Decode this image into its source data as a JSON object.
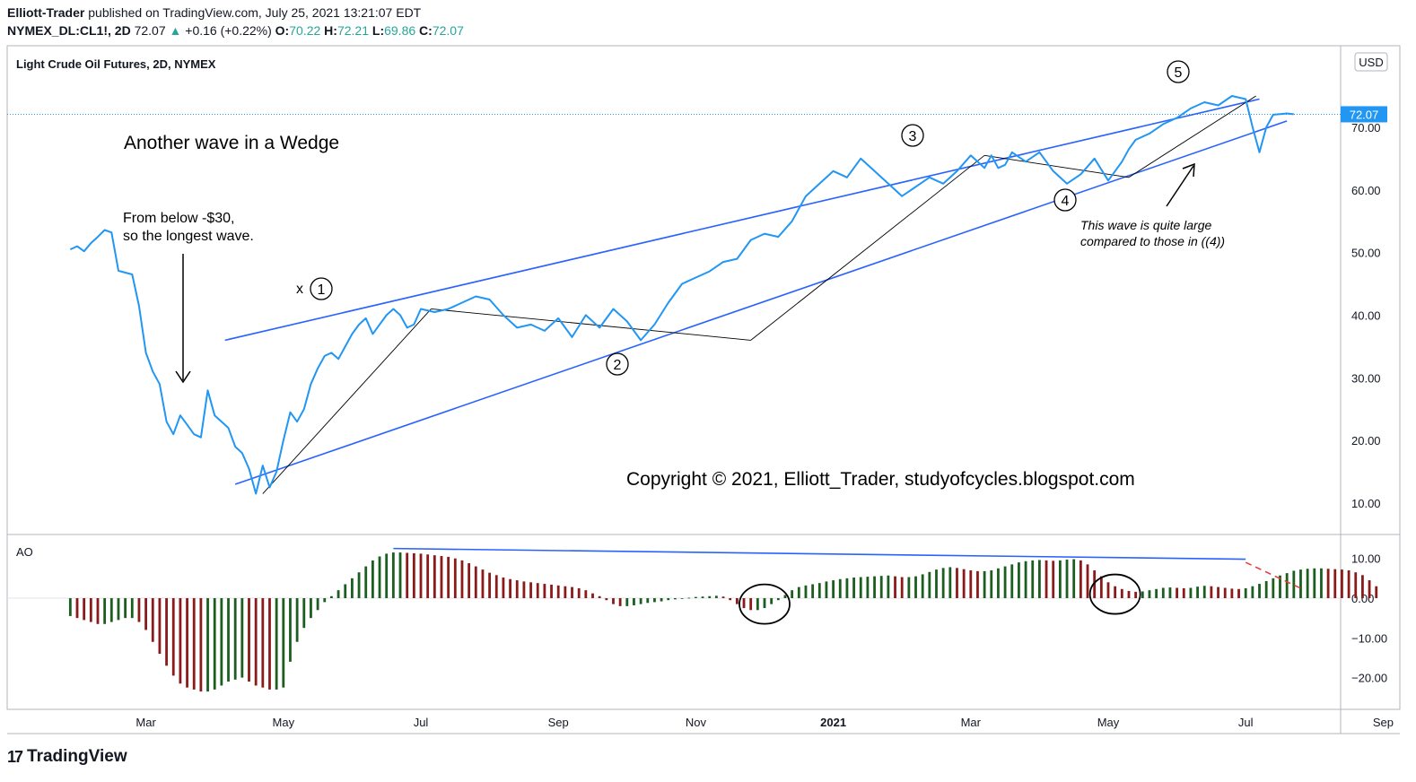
{
  "header": {
    "author": "Elliott-Trader",
    "published": " published on TradingView.com, July 25, 2021 13:21:07 EDT",
    "symbol": "NYMEX_DL:CL1!, 2D",
    "last": "72.07",
    "change": "+0.16 (+0.22%)",
    "o_label": "O:",
    "o_value": "70.22",
    "h_label": "H:",
    "h_value": "72.21",
    "l_label": "L:",
    "l_value": "69.86",
    "c_label": "C:",
    "c_value": "72.07"
  },
  "brand": {
    "name": "TradingView",
    "logo": "17"
  },
  "colors": {
    "price_line": "#2196f3",
    "wedge": "#2962ff",
    "ao_green": "#1b5e20",
    "ao_red": "#8b1a1a",
    "ao_dashed": "#e53935"
  },
  "chart_data": [
    {
      "type": "line",
      "title": "Light Crude Oil Futures, 2D, NYMEX",
      "currency": "USD",
      "last_price_label": "72.07",
      "ylim": [
        5,
        80
      ],
      "y_ticks": [
        "10.00",
        "20.00",
        "30.00",
        "40.00",
        "50.00",
        "60.00",
        "70.00"
      ],
      "x_ticks": [
        "Mar",
        "May",
        "Jul",
        "Sep",
        "Nov",
        "2021",
        "Mar",
        "May",
        "Jul",
        "Sep"
      ],
      "x_tick_months": [
        1,
        3,
        5,
        7,
        9,
        11,
        13,
        15,
        17,
        19
      ],
      "series": [
        {
          "x": [
            -0.1,
            0.0,
            0.1,
            0.2,
            0.3,
            0.4,
            0.5,
            0.6,
            0.7,
            0.8,
            0.9,
            1.0,
            1.1,
            1.2,
            1.3,
            1.4,
            1.5,
            1.6,
            1.7,
            1.8,
            1.9,
            2.0,
            2.1,
            2.2,
            2.3,
            2.4,
            2.5,
            2.6,
            2.7,
            2.8,
            2.9,
            3.0,
            3.1,
            3.2,
            3.3,
            3.4,
            3.5,
            3.6,
            3.7,
            3.8,
            3.9,
            4.0,
            4.1,
            4.2,
            4.3,
            4.4,
            4.5,
            4.6,
            4.7,
            4.8,
            4.9,
            5.0,
            5.2,
            5.4,
            5.6,
            5.8,
            6.0,
            6.2,
            6.4,
            6.6,
            6.8,
            7.0,
            7.2,
            7.4,
            7.6,
            7.8,
            8.0,
            8.2,
            8.4,
            8.6,
            8.8,
            9.0,
            9.2,
            9.4,
            9.6,
            9.8,
            10.0,
            10.2,
            10.4,
            10.6,
            10.8,
            11.0,
            11.2,
            11.4,
            11.6,
            11.8,
            12.0,
            12.2,
            12.4,
            12.6,
            12.8,
            13.0,
            13.1,
            13.2,
            13.3,
            13.4,
            13.5,
            13.6,
            13.8,
            14.0,
            14.2,
            14.4,
            14.6,
            14.8,
            15.0,
            15.1,
            15.2,
            15.3,
            15.4,
            15.6,
            15.8,
            16.0,
            16.2,
            16.4,
            16.6,
            16.8,
            17.0,
            17.1,
            17.2,
            17.3,
            17.4,
            17.5,
            17.6,
            17.7
          ],
          "values": [
            50.5,
            51.0,
            50.2,
            51.5,
            52.5,
            53.6,
            53.2,
            47.1,
            46.8,
            46.5,
            41.5,
            34.0,
            31.0,
            29.0,
            23.0,
            21.0,
            24.0,
            22.5,
            21.0,
            20.5,
            28.0,
            24.0,
            23.0,
            22.0,
            19.0,
            18.0,
            15.5,
            11.5,
            16.0,
            12.5,
            15.0,
            20.0,
            24.5,
            23.0,
            25.0,
            29.0,
            31.5,
            33.5,
            34.0,
            33.0,
            35.0,
            37.0,
            38.5,
            39.5,
            37.0,
            38.5,
            40.0,
            41.0,
            40.0,
            38.0,
            38.5,
            41.0,
            40.5,
            41.0,
            42.0,
            43.0,
            42.5,
            40.0,
            38.0,
            38.5,
            37.5,
            39.5,
            36.5,
            40.0,
            38.0,
            41.0,
            39.0,
            36.0,
            38.5,
            42.0,
            45.0,
            46.0,
            47.0,
            48.5,
            49.0,
            52.0,
            53.0,
            52.5,
            55.0,
            59.0,
            61.0,
            63.0,
            62.0,
            65.0,
            63.0,
            61.0,
            59.0,
            60.5,
            62.0,
            61.0,
            63.0,
            65.5,
            64.5,
            63.5,
            65.5,
            63.5,
            64.0,
            66.0,
            64.5,
            66.0,
            63.0,
            61.0,
            62.5,
            65.0,
            61.5,
            63.0,
            64.5,
            66.5,
            68.0,
            69.0,
            70.5,
            71.5,
            73.0,
            74.0,
            73.5,
            75.0,
            74.5,
            70.0,
            66.0,
            70.0,
            72.0,
            72.1,
            72.2,
            72.07
          ]
        }
      ],
      "labels": {
        "pivot_x": "x",
        "wave1": "1",
        "wave2": "2",
        "wave3": "3",
        "wave4": "4",
        "wave5": "5",
        "heading": "Another wave in a Wedge",
        "note_line1": "From below -$30,",
        "note_line2": "so the longest wave.",
        "italic_line1": "This wave is quite large",
        "italic_line2": "compared to those in ((4))",
        "copyright": "Copyright © 2021, Elliott_Trader, studyofcycles.blogspot.com"
      },
      "waves": {
        "w0": [
          2.7,
          11.5
        ],
        "w1": [
          5.15,
          41.0
        ],
        "w2": [
          9.8,
          36.0
        ],
        "w3": [
          13.2,
          65.5
        ],
        "w4": [
          15.3,
          62.0
        ],
        "w5": [
          17.15,
          75.0
        ]
      },
      "wedge_upper": [
        [
          2.15,
          36.0
        ],
        [
          17.2,
          74.5
        ]
      ],
      "wedge_lower": [
        [
          2.3,
          13.0
        ],
        [
          17.6,
          71.0
        ]
      ]
    },
    {
      "type": "bar",
      "title": "AO",
      "ylim": [
        -25,
        14
      ],
      "y_ticks": [
        "10.00",
        "0.00",
        "−10.00",
        "−20.00"
      ],
      "x_start": -0.1,
      "x_step": 0.1,
      "values": [
        -4.5,
        -5.0,
        -5.5,
        -6.0,
        -6.5,
        -6.5,
        -6.0,
        -5.5,
        -5.0,
        -5.0,
        -6.0,
        -8.0,
        -11.0,
        -14.0,
        -17.0,
        -19.5,
        -21.5,
        -22.5,
        -23.0,
        -23.5,
        -23.5,
        -23.0,
        -22.0,
        -21.0,
        -20.5,
        -20.0,
        -21.0,
        -22.0,
        -22.5,
        -23.0,
        -23.0,
        -22.5,
        -16.0,
        -11.0,
        -7.5,
        -5.0,
        -3.0,
        -1.0,
        0.5,
        2.0,
        3.5,
        5.0,
        6.5,
        8.0,
        9.5,
        10.5,
        11.2,
        11.5,
        11.5,
        11.4,
        11.3,
        11.2,
        11.0,
        10.8,
        10.6,
        10.4,
        10.0,
        9.5,
        8.8,
        8.0,
        7.2,
        6.4,
        5.8,
        5.2,
        4.8,
        4.5,
        4.2,
        4.0,
        3.8,
        3.6,
        3.4,
        3.2,
        3.0,
        2.8,
        2.5,
        2.0,
        1.2,
        0.5,
        -0.5,
        -1.5,
        -2.0,
        -2.0,
        -1.8,
        -1.5,
        -1.2,
        -1.0,
        -0.8,
        -0.5,
        -0.3,
        -0.1,
        0.1,
        0.3,
        0.4,
        0.5,
        0.6,
        0.4,
        -0.5,
        -1.5,
        -2.5,
        -3.0,
        -3.0,
        -2.5,
        -1.5,
        -0.5,
        0.8,
        2.0,
        2.8,
        3.2,
        3.5,
        3.8,
        4.2,
        4.5,
        4.8,
        5.0,
        5.2,
        5.3,
        5.4,
        5.5,
        5.6,
        5.7,
        5.5,
        5.3,
        5.3,
        5.5,
        6.0,
        6.6,
        7.2,
        7.6,
        7.8,
        7.6,
        7.3,
        7.0,
        6.8,
        6.8,
        7.0,
        7.5,
        8.0,
        8.5,
        9.0,
        9.3,
        9.5,
        9.6,
        9.5,
        9.4,
        9.5,
        9.7,
        9.8,
        9.5,
        8.5,
        7.0,
        5.5,
        4.0,
        3.0,
        2.3,
        1.8,
        1.6,
        1.7,
        2.0,
        2.3,
        2.6,
        2.7,
        2.6,
        2.5,
        2.6,
        2.9,
        3.1,
        3.0,
        2.8,
        2.6,
        2.4,
        2.3,
        2.5,
        3.0,
        3.6,
        4.3,
        5.0,
        5.7,
        6.3,
        6.9,
        7.2,
        7.4,
        7.5,
        7.5,
        7.4,
        7.3,
        7.2,
        7.0,
        6.5,
        5.8,
        4.5,
        3.0
      ],
      "trend": [
        [
          4.6,
          12.5
        ],
        [
          17.0,
          9.8
        ]
      ],
      "projection": [
        [
          17.0,
          9.0
        ],
        [
          17.8,
          2.5
        ]
      ],
      "circles": [
        [
          10.0,
          -1.5
        ],
        [
          15.1,
          1.0
        ]
      ]
    }
  ]
}
